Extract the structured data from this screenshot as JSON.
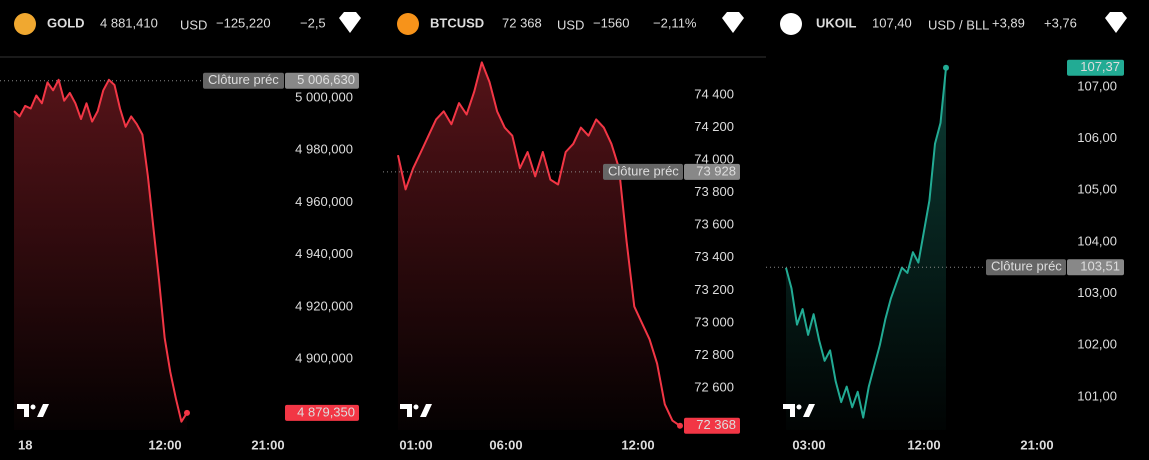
{
  "chart_data": [
    {
      "type": "line",
      "title": "GOLD",
      "price": "4 881,410",
      "currency": "USD",
      "change": "−125,220",
      "change_pct": "−2,5",
      "color": "#f23645",
      "values": [
        4995,
        4993,
        4997,
        4996,
        5001,
        4998,
        5006,
        5003,
        5007,
        4999,
        5002,
        4998,
        4992,
        4998,
        4991,
        4995,
        5003,
        5007,
        5005,
        4996,
        4989,
        4993,
        4990,
        4986,
        4970,
        4950,
        4930,
        4908,
        4895,
        4885,
        4876,
        4879.35
      ],
      "ylim": [
        4872.8,
        5014.6
      ],
      "yticks": [
        {
          "value": 4900,
          "label": "4 900,000"
        },
        {
          "value": 4920,
          "label": "4 920,000"
        },
        {
          "value": 4940,
          "label": "4 940,000"
        },
        {
          "value": 4960,
          "label": "4 960,000"
        },
        {
          "value": 4980,
          "label": "4 980,000"
        },
        {
          "value": 5000,
          "label": "5 000,000"
        }
      ],
      "xticks": [
        "18",
        "12:00",
        "21:00"
      ],
      "prev_close": {
        "name": "Clôture préc",
        "value": 5006.63,
        "label": "5 006,630"
      },
      "last_price": {
        "value": 4879.35,
        "label": "4 879,350"
      }
    },
    {
      "type": "line",
      "title": "BTCUSD",
      "price": "72 368",
      "currency": "USD",
      "change": "−1560",
      "change_pct": "−2,11%",
      "color": "#f23645",
      "values": [
        74030,
        73820,
        73950,
        74050,
        74150,
        74250,
        74300,
        74220,
        74350,
        74280,
        74420,
        74600,
        74480,
        74300,
        74200,
        74150,
        73950,
        74050,
        73900,
        74050,
        73880,
        73850,
        74050,
        74100,
        74200,
        74150,
        74250,
        74200,
        74100,
        73950,
        73500,
        73100,
        73000,
        72900,
        72750,
        72500,
        72400,
        72368
      ],
      "ylim": [
        72342,
        74615
      ],
      "yticks": [
        {
          "value": 72600,
          "label": "72 600"
        },
        {
          "value": 72800,
          "label": "72 800"
        },
        {
          "value": 73000,
          "label": "73 000"
        },
        {
          "value": 73200,
          "label": "73 200"
        },
        {
          "value": 73400,
          "label": "73 400"
        },
        {
          "value": 73600,
          "label": "73 600"
        },
        {
          "value": 73800,
          "label": "73 800"
        },
        {
          "value": 74000,
          "label": "74 000"
        },
        {
          "value": 74200,
          "label": "74 200"
        },
        {
          "value": 74400,
          "label": "74 400"
        }
      ],
      "xticks": [
        "01:00",
        "06:00",
        "12:00"
      ],
      "prev_close": {
        "name": "Clôture préc",
        "value": 73928,
        "label": "73 928"
      },
      "last_price": {
        "value": 72368,
        "label": "72 368"
      }
    },
    {
      "type": "line",
      "title": "UKOIL",
      "price": "107,40",
      "currency": "USD / BLL",
      "change": "+3,89",
      "change_pct": "+3,76",
      "color": "#22ab94",
      "values": [
        103.5,
        103.1,
        102.4,
        102.7,
        102.2,
        102.6,
        102.1,
        101.7,
        101.9,
        101.3,
        100.9,
        101.2,
        100.8,
        101.1,
        100.6,
        101.2,
        101.6,
        102.0,
        102.5,
        102.9,
        103.2,
        103.5,
        103.4,
        103.8,
        103.6,
        104.2,
        104.8,
        105.9,
        106.3,
        107.37
      ],
      "ylim": [
        100.36,
        107.52
      ],
      "yticks": [
        {
          "value": 101,
          "label": "101,00"
        },
        {
          "value": 102,
          "label": "102,00"
        },
        {
          "value": 103,
          "label": "103,00"
        },
        {
          "value": 104,
          "label": "104,00"
        },
        {
          "value": 105,
          "label": "105,00"
        },
        {
          "value": 106,
          "label": "106,00"
        },
        {
          "value": 107,
          "label": "107,00"
        }
      ],
      "xticks": [
        "03:00",
        "12:00",
        "21:00"
      ],
      "prev_close": {
        "name": "Clôture préc",
        "value": 103.51,
        "label": "103,51"
      },
      "last_price": {
        "value": 107.37,
        "label": "107,37"
      }
    }
  ]
}
